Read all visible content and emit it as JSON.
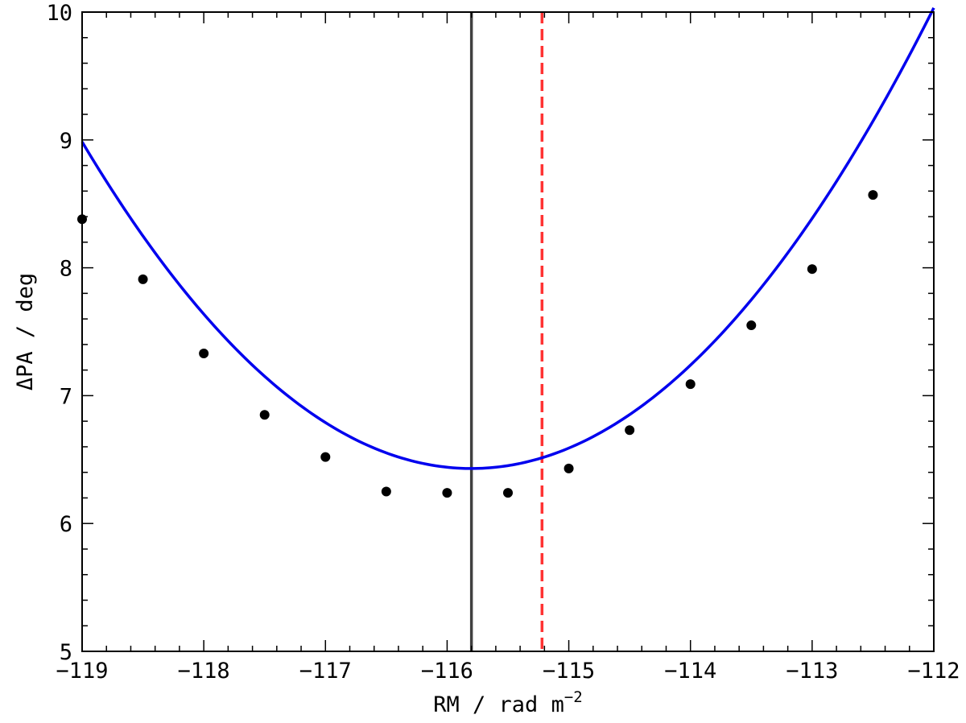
{
  "chart_data": {
    "type": "scatter",
    "xlabel": "RM / rad m",
    "xlabel_sup": "−2",
    "ylabel": "ΔPA / deg",
    "xlim": [
      -119,
      -112
    ],
    "ylim": [
      5,
      10
    ],
    "x_ticks": [
      -119,
      -118,
      -117,
      -116,
      -115,
      -114,
      -113,
      -112
    ],
    "x_tick_labels": [
      "−119",
      "−118",
      "−117",
      "−116",
      "−115",
      "−114",
      "−113",
      "−112"
    ],
    "y_ticks": [
      5,
      6,
      7,
      8,
      9,
      10
    ],
    "y_tick_labels": [
      "5",
      "6",
      "7",
      "8",
      "9",
      "10"
    ],
    "grid": false,
    "points": {
      "color": "#000000",
      "x": [
        -119.0,
        -118.5,
        -118.0,
        -117.5,
        -117.0,
        -116.5,
        -116.0,
        -115.5,
        -115.0,
        -114.5,
        -114.0,
        -113.5,
        -113.0,
        -112.5
      ],
      "y": [
        8.38,
        7.91,
        7.33,
        6.85,
        6.52,
        6.25,
        6.24,
        6.24,
        6.43,
        6.73,
        7.09,
        7.55,
        7.99,
        8.57
      ]
    },
    "fit_curve": {
      "type": "parabola",
      "color": "#0000ee",
      "vertex_x": -115.8,
      "vertex_y": 6.43,
      "coeff_a": 0.2495
    },
    "vlines": [
      {
        "x": -115.8,
        "color": "#404040",
        "style": "solid"
      },
      {
        "x": -115.22,
        "color": "#ff3333",
        "style": "dashed"
      }
    ]
  }
}
